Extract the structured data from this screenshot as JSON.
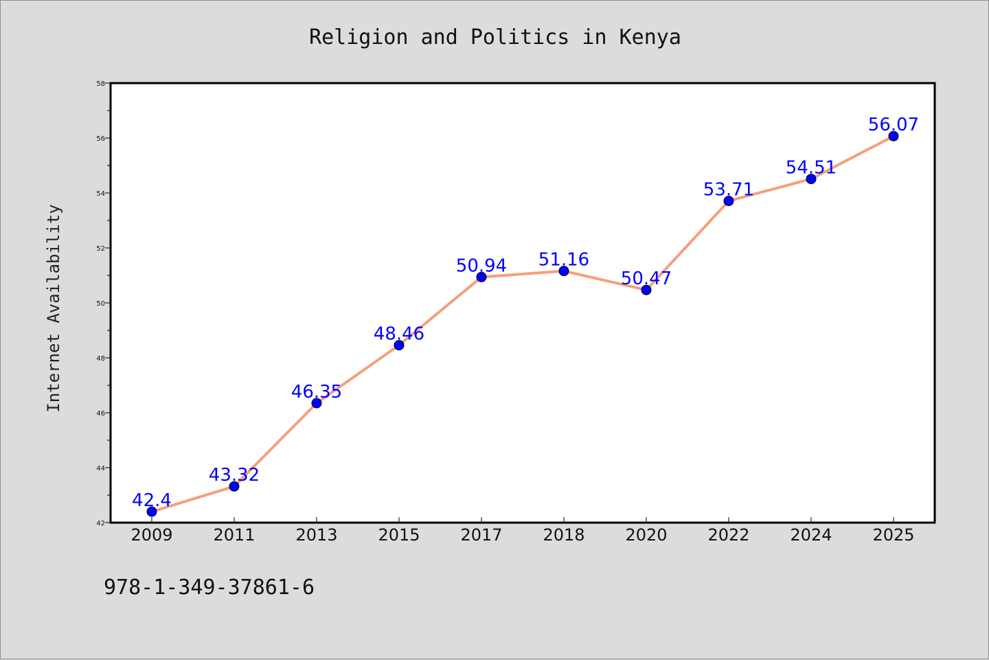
{
  "footnote": "978-1-349-37861-6",
  "colors": {
    "background": "#dcdcdc",
    "plot_background": "#ffffff",
    "line": "#f4a07a",
    "marker": "#0000ff",
    "label": "#0000ff",
    "axis": "#000000"
  },
  "chart_data": {
    "type": "line",
    "title": "Religion and Politics in Kenya",
    "xlabel": "",
    "ylabel": "Internet Availability",
    "categories": [
      "2009",
      "2011",
      "2013",
      "2015",
      "2017",
      "2018",
      "2020",
      "2022",
      "2024",
      "2025"
    ],
    "series": [
      {
        "values": [
          42.4,
          43.32,
          46.35,
          48.46,
          50.94,
          51.16,
          50.47,
          53.71,
          54.51,
          56.07
        ],
        "labels": [
          "42.4",
          "43.32",
          "46.35",
          "48.46",
          "50.94",
          "51.16",
          "50.47",
          "53.71",
          "54.51",
          "56.07"
        ]
      }
    ],
    "ylim": [
      42,
      58
    ],
    "yticks": [
      "42",
      "44",
      "46",
      "48",
      "50",
      "52",
      "54",
      "56",
      "58"
    ],
    "grid": false,
    "legend": "none"
  }
}
